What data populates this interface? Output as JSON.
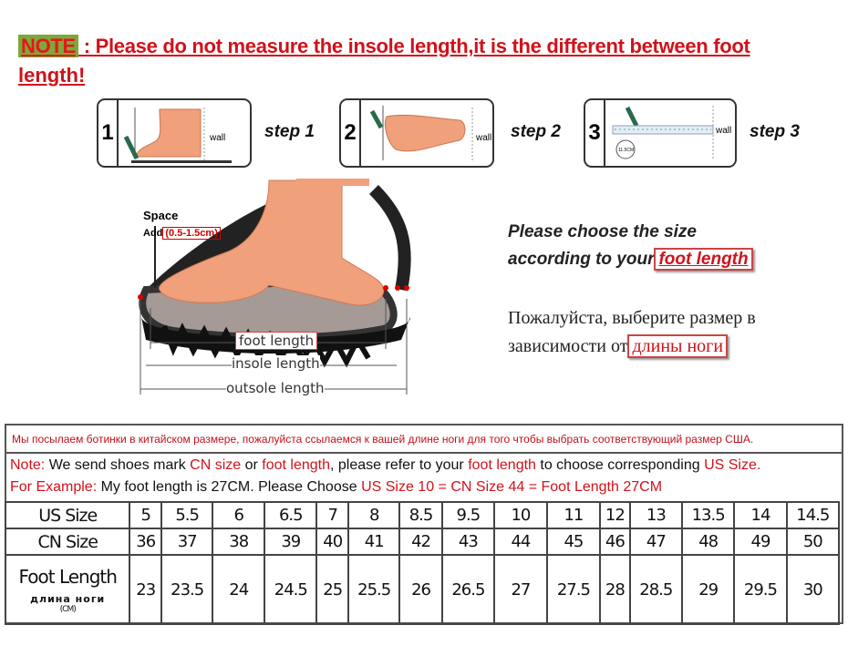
{
  "note": {
    "tag": "NOTE",
    "text": " : Please do not measure the insole length,it is the different between foot",
    "text2": "length!"
  },
  "steps": [
    {
      "num": "1",
      "label": "step 1",
      "wall": "wall"
    },
    {
      "num": "2",
      "label": "step 2",
      "wall": "wall"
    },
    {
      "num": "3",
      "label": "step 3",
      "wall": "wall",
      "ruler": "11.5CM"
    }
  ],
  "diagram": {
    "space": "Space",
    "add": "Add",
    "range": "(0.5-1.5cm)",
    "foot_length": "foot length",
    "insole_length": "insole length",
    "outsole_length": "outsole length"
  },
  "choose": {
    "line1": "Please choose the size",
    "line2": "according to your",
    "highlight": "foot length"
  },
  "russian": {
    "line1": "Пожалуйста, выберите размер в",
    "line2": "зависимости от",
    "highlight": "длины ноги"
  },
  "table": {
    "russian_note": "Мы посылаем ботинки в китайском размере, пожалуйста ссылаемся к вашей длине ноги для того чтобы выбрать соответствующий размер США.",
    "note_label": "Note:",
    "note_a": " We send shoes mark ",
    "note_cn": "CN size",
    "note_b": " or ",
    "note_fl": "foot length",
    "note_c": ", please refer to your ",
    "note_fl2": "foot length",
    "note_d": " to choose corresponding ",
    "note_us": "US Size.",
    "ex_label": "For Example:",
    "ex_a": " My foot length is 27CM. Please Choose ",
    "ex_b": "US Size 10 = CN Size 44 = Foot Length 27CM",
    "rows": {
      "us_label": "US Size",
      "us": [
        "5",
        "5.5",
        "6",
        "6.5",
        "7",
        "8",
        "8.5",
        "9.5",
        "10",
        "11",
        "12",
        "13",
        "13.5",
        "14",
        "14.5"
      ],
      "cn_label": "CN Size",
      "cn": [
        "36",
        "37",
        "38",
        "39",
        "40",
        "41",
        "42",
        "43",
        "44",
        "45",
        "46",
        "47",
        "48",
        "49",
        "50"
      ],
      "fl_label": "Foot Length",
      "fl_ru": "длина ноги",
      "fl_unit": "(CM)",
      "fl": [
        "23",
        "23.5",
        "24",
        "24.5",
        "25",
        "25.5",
        "26",
        "26.5",
        "27",
        "27.5",
        "28",
        "28.5",
        "29",
        "29.5",
        "30"
      ]
    }
  },
  "colors": {
    "red": "#d0121b",
    "skin": "#f0a07a",
    "sole": "#222222"
  }
}
